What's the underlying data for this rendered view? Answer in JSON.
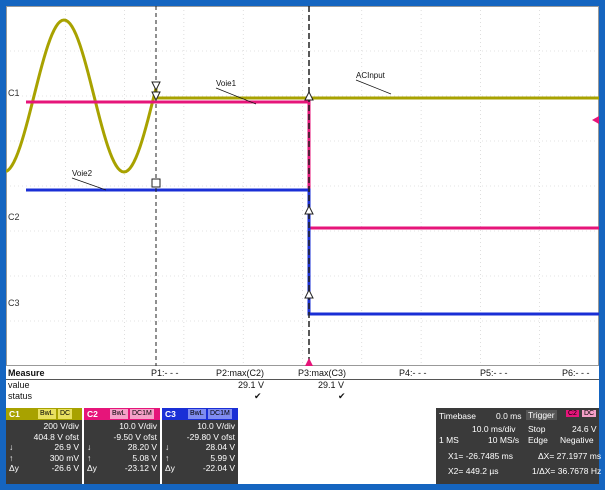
{
  "colors": {
    "c1": "#a8a200",
    "c2": "#e6157a",
    "c3": "#1a2fd6",
    "frame": "#1565c0"
  },
  "traces": {
    "c1": {
      "label": "C1",
      "annotation": "Voie1"
    },
    "c2": {
      "label": "C2",
      "annotation": "Voie2"
    },
    "c3": {
      "label": "C3"
    },
    "ac_annotation": "ACInput"
  },
  "measure": {
    "header": "Measure",
    "row_value": "value",
    "row_status": "status",
    "p1": "P1:- - -",
    "p2": "P2:max(C2)",
    "p3": "P3:max(C3)",
    "p4": "P4:- - -",
    "p5": "P5:- - -",
    "p6": "P6:- - -",
    "p2_value": "29.1 V",
    "p3_value": "29.1 V",
    "check": "✔"
  },
  "channels": {
    "c1": {
      "name": "C1",
      "bwl": "BwL",
      "coupling": "DC",
      "vdiv": "200 V/div",
      "ofst": "404.8 V ofst",
      "low": "26.9 V",
      "cursor": "300 mV",
      "delta": "-26.6 V",
      "sym_low": "↓",
      "sym_cursor": "↑",
      "sym_delta": "Δy"
    },
    "c2": {
      "name": "C2",
      "bwl": "BwL",
      "coupling": "DC1M",
      "vdiv": "10.0 V/div",
      "ofst": "-9.50 V ofst",
      "low": "28.20 V",
      "cursor": "5.08 V",
      "delta": "-23.12 V",
      "sym_low": "↓",
      "sym_cursor": "↑",
      "sym_delta": "Δy"
    },
    "c3": {
      "name": "C3",
      "bwl": "BwL",
      "coupling": "DC1M",
      "vdiv": "10.0 V/div",
      "ofst": "-29.80 V ofst",
      "low": "28.04 V",
      "cursor": "5.99 V",
      "delta": "-22.04 V",
      "sym_low": "↓",
      "sym_cursor": "↑",
      "sym_delta": "Δy"
    }
  },
  "timebase": {
    "label": "Timebase",
    "offset": "0.0 ms",
    "tdiv": "10.0 ms/div",
    "points": "1 MS",
    "rate": "10 MS/s",
    "x1": "X1= -26.7485 ms",
    "x2": "X2= 449.2 µs",
    "dx": "ΔX= 27.1977 ms",
    "inv_dx": "1/ΔX= 36.7678 Hz"
  },
  "trigger": {
    "label": "Trigger",
    "source": "C2",
    "coupling": "DC",
    "mode": "Stop",
    "level": "24.6 V",
    "type": "Edge",
    "slope": "Negative"
  }
}
